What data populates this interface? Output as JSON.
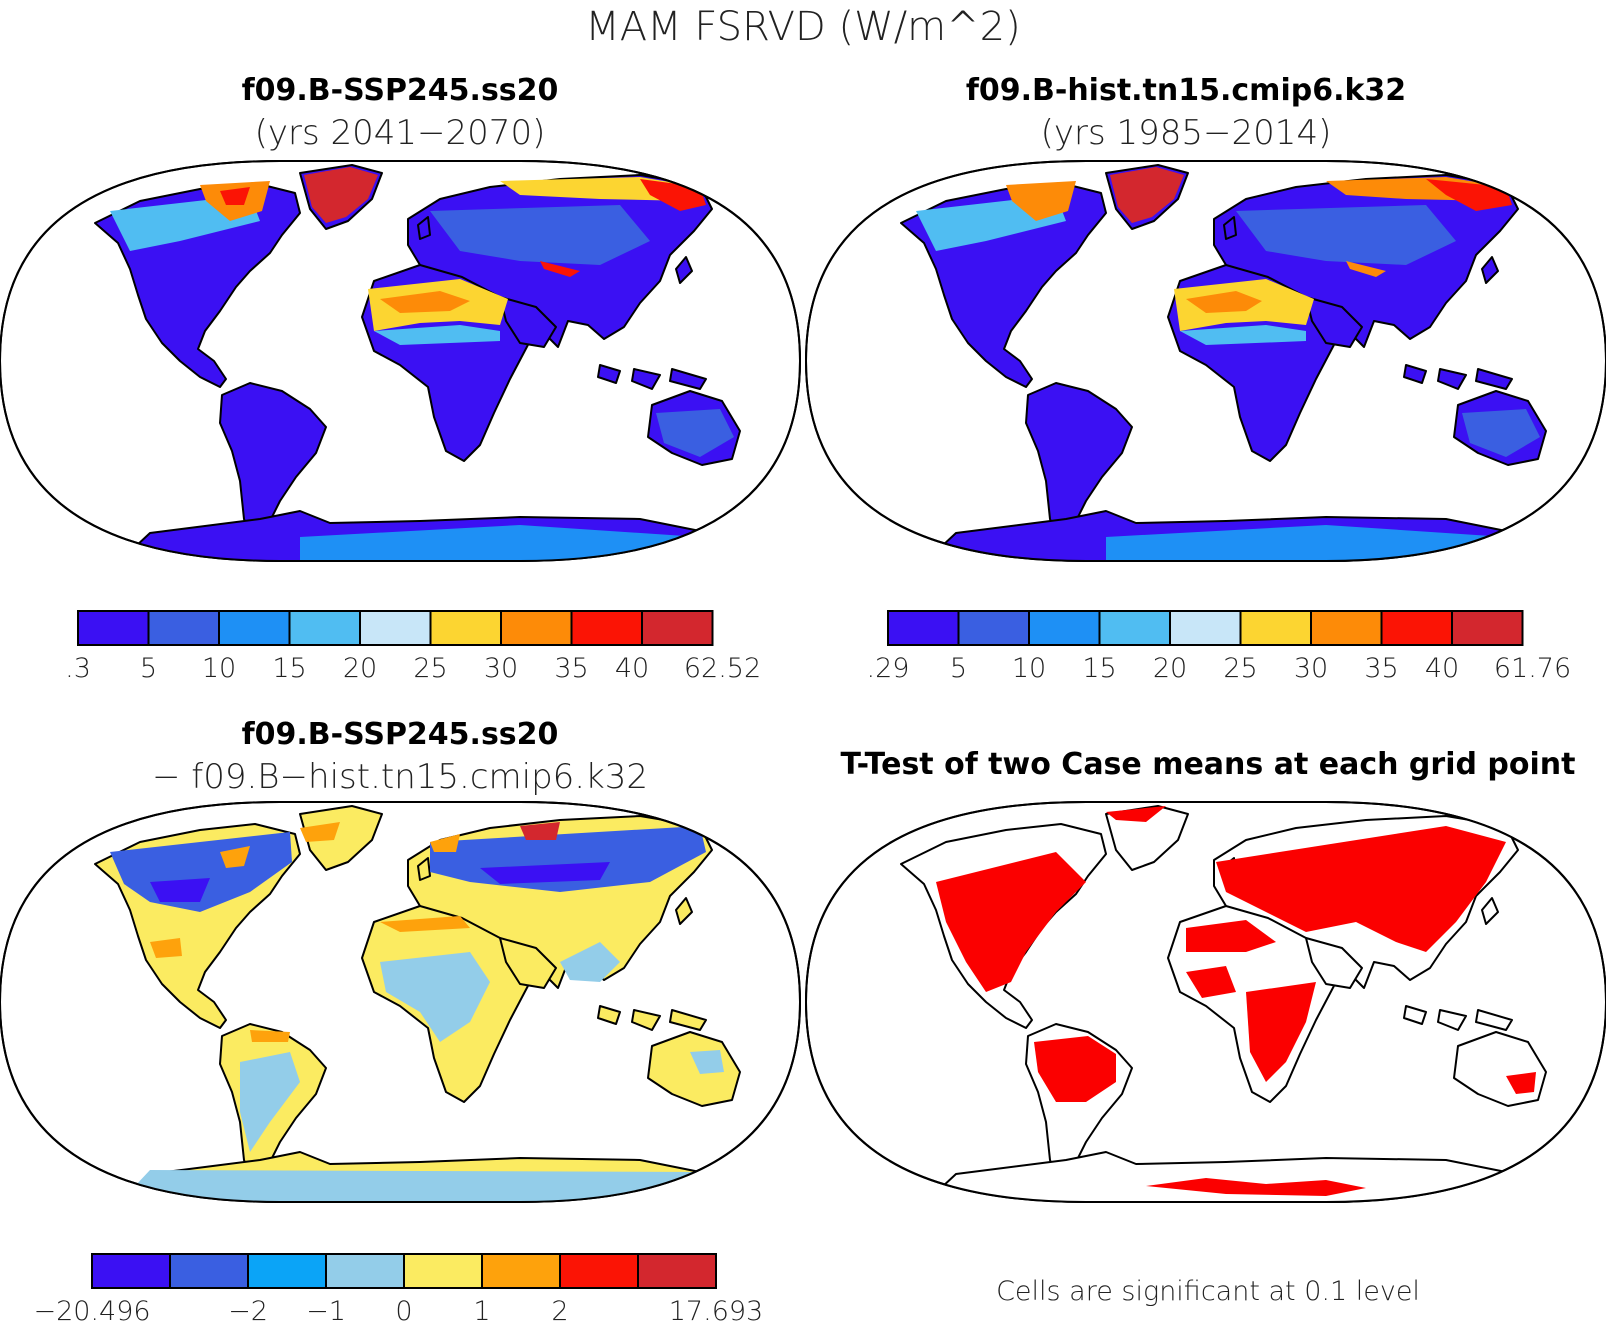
{
  "figure_title": "MAM FSRVD (W/m^2)",
  "note": "Cells are significant at 0.1 level",
  "colors": {
    "sequential": [
      "#3b10f3",
      "#3a5fe1",
      "#1e90f5",
      "#50bdf2",
      "#c8e6f8",
      "#fcd531",
      "#fd8b08",
      "#fb1405",
      "#d3272e"
    ],
    "difference": [
      "#3b10f3",
      "#3a5fe1",
      "#0ba4f7",
      "#93cde9",
      "#fbeb61",
      "#fea20c",
      "#fb1405",
      "#d3272e"
    ],
    "significance": "#fb0000"
  },
  "panels": [
    {
      "title": "f09.B-SSP245.ss20",
      "subtitle": "(yrs 2041−2070)",
      "colorbar_labels": [
        ".3",
        "5",
        "10",
        "15",
        "20",
        "25",
        "30",
        "35",
        "40",
        "62.52"
      ]
    },
    {
      "title": "f09.B-hist.tn15.cmip6.k32",
      "subtitle": "(yrs 1985−2014)",
      "colorbar_labels": [
        ".29",
        "5",
        "10",
        "15",
        "20",
        "25",
        "30",
        "35",
        "40",
        "61.76"
      ]
    },
    {
      "title": "f09.B-SSP245.ss20",
      "subtitle": "− f09.B−hist.tn15.cmip6.k32",
      "colorbar_labels": [
        "−20.496",
        "−2",
        "−1",
        "0",
        "1",
        "2",
        "17.693"
      ]
    },
    {
      "title": "T-Test of two Case means at each grid point"
    }
  ]
}
